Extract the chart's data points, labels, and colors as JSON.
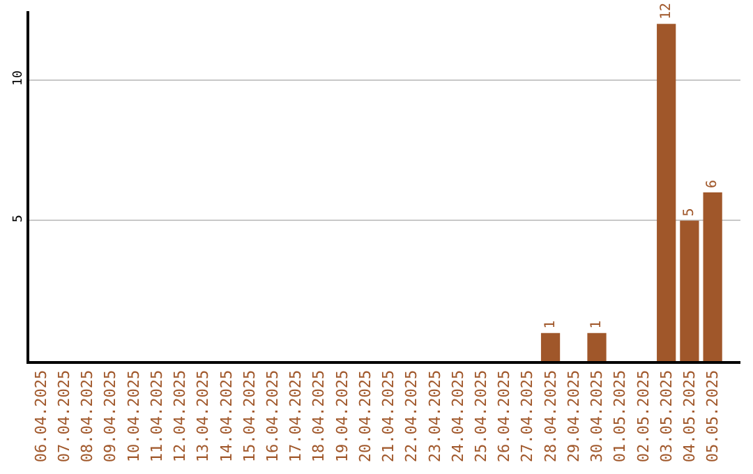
{
  "chart_data": {
    "type": "bar",
    "categories": [
      "06.04.2025",
      "07.04.2025",
      "08.04.2025",
      "09.04.2025",
      "10.04.2025",
      "11.04.2025",
      "12.04.2025",
      "13.04.2025",
      "14.04.2025",
      "15.04.2025",
      "16.04.2025",
      "17.04.2025",
      "18.04.2025",
      "19.04.2025",
      "20.04.2025",
      "21.04.2025",
      "22.04.2025",
      "23.04.2025",
      "24.04.2025",
      "25.04.2025",
      "26.04.2025",
      "27.04.2025",
      "28.04.2025",
      "29.04.2025",
      "30.04.2025",
      "01.05.2025",
      "02.05.2025",
      "03.05.2025",
      "04.05.2025",
      "05.05.2025"
    ],
    "values": [
      0,
      0,
      0,
      0,
      0,
      0,
      0,
      0,
      0,
      0,
      0,
      0,
      0,
      0,
      0,
      0,
      0,
      0,
      0,
      0,
      0,
      0,
      1,
      0,
      1,
      0,
      0,
      12,
      5,
      6
    ],
    "value_labels": [
      null,
      null,
      null,
      null,
      null,
      null,
      null,
      null,
      null,
      null,
      null,
      null,
      null,
      null,
      null,
      null,
      null,
      null,
      null,
      null,
      null,
      null,
      "1",
      null,
      "1",
      null,
      null,
      "12",
      "5",
      "6"
    ],
    "color": "#a0572a",
    "ylim": [
      0,
      12.45
    ],
    "yticks": [
      5,
      10
    ],
    "grid": "y"
  }
}
